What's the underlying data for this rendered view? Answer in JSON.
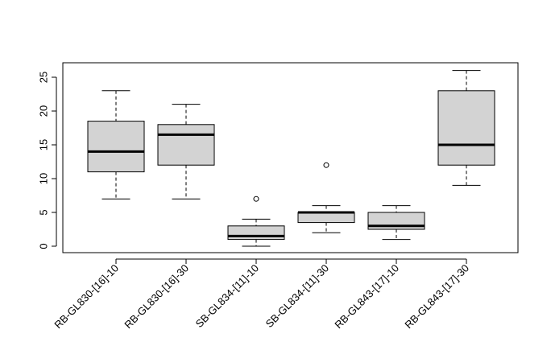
{
  "chart_data": {
    "type": "boxplot",
    "title": "",
    "xlabel": "",
    "ylabel": "",
    "ylim": [
      -0.8,
      27
    ],
    "yticks": [
      0,
      5,
      10,
      15,
      20,
      25
    ],
    "grid": false,
    "box_color": "#d3d3d3",
    "categories": [
      "RB-GL830-[16]-10",
      "RB-GL830-[16]-30",
      "SB-GL834-[11]-10",
      "SB-GL834-[11]-30",
      "RB-GL843-[17]-10",
      "RB-GL843-[17]-30"
    ],
    "boxes": [
      {
        "min": 7,
        "q1": 11,
        "median": 14,
        "q3": 18.5,
        "max": 23,
        "outliers": []
      },
      {
        "min": 7,
        "q1": 12,
        "median": 16.5,
        "q3": 18,
        "max": 21,
        "outliers": []
      },
      {
        "min": 0,
        "q1": 1,
        "median": 1.5,
        "q3": 3,
        "max": 4,
        "outliers": [
          7
        ]
      },
      {
        "min": 2,
        "q1": 3.5,
        "median": 5,
        "q3": 5,
        "max": 6,
        "outliers": [
          12
        ]
      },
      {
        "min": 1,
        "q1": 2.5,
        "median": 3,
        "q3": 5,
        "max": 6,
        "outliers": []
      },
      {
        "min": 9,
        "q1": 12,
        "median": 15,
        "q3": 23,
        "max": 26,
        "outliers": []
      }
    ]
  }
}
